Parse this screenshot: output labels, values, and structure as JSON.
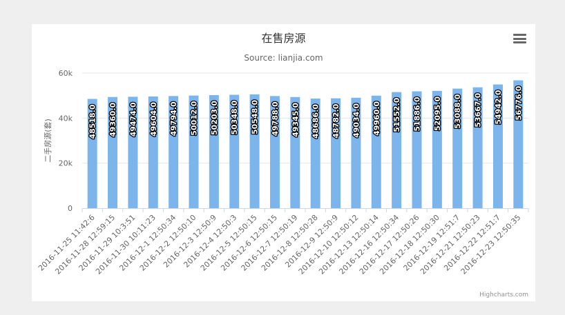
{
  "chart_data": {
    "type": "bar",
    "title": "在售房源",
    "subtitle": "Source: lianjia.com",
    "ylabel": "二手房源(套)",
    "xlabel": "",
    "ylim": [
      0,
      60000
    ],
    "yticks": [
      0,
      20000,
      40000,
      60000
    ],
    "ytick_labels": [
      "0",
      "20k",
      "40k",
      "60k"
    ],
    "grid": true,
    "bar_color": "#7cb5ec",
    "categories": [
      "2016-11-25 11:42:6",
      "2016-11-28 12:59:15",
      "2016-11-29 10:3:51",
      "2016-11-30 10:11:23",
      "2016-12-1 12:50:34",
      "2016-12-2 12:50:10",
      "2016-12-3 12:50:9",
      "2016-12-4 12:50:3",
      "2016-12-5 12:50:15",
      "2016-12-6 12:50:15",
      "2016-12-7 12:50:19",
      "2016-12-8 12:50:28",
      "2016-12-9 12:50:9",
      "2016-12-10 12:50:12",
      "2016-12-13 12:50:14",
      "2016-12-16 12:50:34",
      "2016-12-17 12:50:26",
      "2016-12-18 12:50:30",
      "2016-12-19 12:51:7",
      "2016-12-21 12:50:23",
      "2016-12-22 12:51:7",
      "2016-12-23 12:50:35"
    ],
    "values": [
      48518,
      49360,
      49474,
      49604,
      49794,
      50012,
      50203,
      50348,
      50548,
      49788,
      49345,
      48686,
      48782,
      49034,
      49960,
      51552,
      51886,
      52095,
      53088,
      53667,
      54942,
      56776
    ],
    "data_labels": [
      "48518.0",
      "49360.0",
      "49474.0",
      "49604.0",
      "49794.0",
      "50012.0",
      "50203.0",
      "50348.0",
      "50548.0",
      "49788.0",
      "49345.0",
      "48686.0",
      "48782.0",
      "49034.0",
      "49960.0",
      "51552.0",
      "51886.0",
      "52095.0",
      "53088.0",
      "53667.0",
      "54942.0",
      "56776.0"
    ]
  },
  "credits": "Highcharts.com",
  "icons": {
    "menu": "hamburger-menu-icon"
  }
}
